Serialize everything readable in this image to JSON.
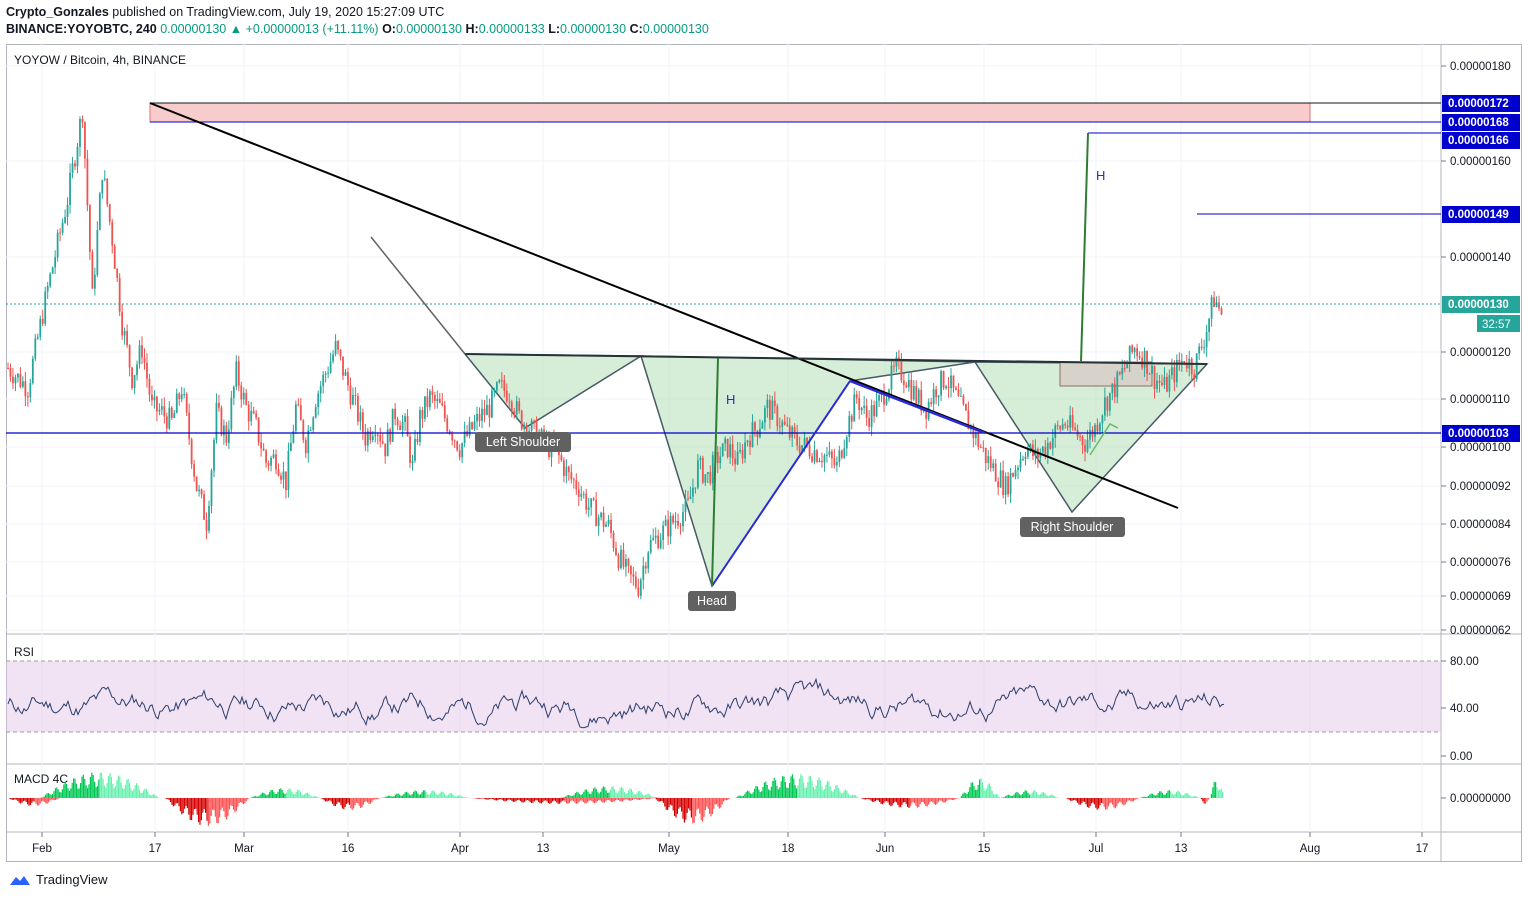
{
  "header": {
    "author": "Crypto_Gonzales",
    "published": "published on TradingView.com, July 19, 2020 15:27:09 UTC",
    "symbol": "BINANCE:YOYOBTC, 240",
    "last": "0.00000130",
    "change": "▲ +0.00000013 (+11.11%)",
    "o_label": "O:",
    "o": "0.00000130",
    "h_label": "H:",
    "h": "0.00000133",
    "l_label": "L:",
    "l": "0.00000130",
    "c_label": "C:",
    "c": "0.00000130"
  },
  "brand": {
    "name": "TradingView",
    "icon": "tradingview-logo-icon"
  },
  "colors": {
    "up": "#26a69a",
    "down": "#ef5350",
    "zone": "#a5d6a7",
    "rsi_band": "#e1bee7",
    "macd_up": "#00e676",
    "macd_down": "#ff1744",
    "label_bg": "#2962ff",
    "line_blue": "#0000cc"
  },
  "chart_data": [
    {
      "type": "candlestick",
      "title": "YOYOW / Bitcoin, 4h, BINANCE",
      "x_ticks": [
        "Feb",
        "17",
        "Mar",
        "16",
        "Apr",
        "13",
        "May",
        "18",
        "Jun",
        "15",
        "Jul",
        "13",
        "Aug",
        "17"
      ],
      "y_ticks": [
        "0.00000180",
        "0.00000160",
        "0.00000140",
        "0.00000120",
        "0.00000110",
        "0.00000100",
        "0.00000092",
        "0.00000084",
        "0.00000076",
        "0.00000069",
        "0.00000062"
      ],
      "price_labels": [
        "0.00000172",
        "0.00000168",
        "0.00000166",
        "0.00000149",
        "0.00000130",
        "0.00000103"
      ],
      "countdown": "32:57",
      "pattern_labels": [
        "Left Shoulder",
        "Head",
        "Right Shoulder"
      ],
      "harmonic_labels": [
        "H",
        "H"
      ],
      "path_points": [
        [
          0,
          116
        ],
        [
          8,
          112
        ],
        [
          16,
          132
        ],
        [
          24,
          150
        ],
        [
          30,
          168
        ],
        [
          34,
          130
        ],
        [
          38,
          156
        ],
        [
          42,
          142
        ],
        [
          46,
          125
        ],
        [
          50,
          114
        ],
        [
          54,
          120
        ],
        [
          58,
          108
        ],
        [
          62,
          107
        ],
        [
          66,
          105
        ],
        [
          70,
          112
        ],
        [
          76,
          92
        ],
        [
          80,
          85
        ],
        [
          84,
          107
        ],
        [
          88,
          102
        ],
        [
          92,
          115
        ],
        [
          96,
          108
        ],
        [
          100,
          104
        ],
        [
          104,
          97
        ],
        [
          108,
          98
        ],
        [
          112,
          93
        ],
        [
          116,
          108
        ],
        [
          120,
          101
        ],
        [
          124,
          110
        ],
        [
          128,
          115
        ],
        [
          132,
          120
        ],
        [
          136,
          114
        ],
        [
          140,
          108
        ],
        [
          144,
          102
        ],
        [
          148,
          105
        ],
        [
          152,
          100
        ],
        [
          156,
          107
        ],
        [
          160,
          104
        ],
        [
          163,
          96
        ],
        [
          166,
          106
        ],
        [
          170,
          110
        ],
        [
          174,
          108
        ],
        [
          178,
          104
        ],
        [
          182,
          100
        ],
        [
          186,
          103
        ],
        [
          190,
          106
        ],
        [
          194,
          108
        ],
        [
          198,
          112
        ],
        [
          202,
          111
        ],
        [
          206,
          106
        ],
        [
          210,
          104
        ],
        [
          214,
          102
        ],
        [
          218,
          100
        ],
        [
          222,
          98
        ],
        [
          226,
          94
        ],
        [
          230,
          92
        ],
        [
          234,
          88
        ],
        [
          238,
          86
        ],
        [
          242,
          84
        ],
        [
          246,
          78
        ],
        [
          250,
          74
        ],
        [
          254,
          72
        ],
        [
          258,
          80
        ],
        [
          262,
          82
        ],
        [
          266,
          84
        ],
        [
          270,
          86
        ],
        [
          274,
          88
        ],
        [
          278,
          96
        ],
        [
          282,
          94
        ],
        [
          286,
          98
        ],
        [
          290,
          100
        ],
        [
          294,
          97
        ],
        [
          298,
          102
        ],
        [
          302,
          104
        ],
        [
          306,
          108
        ],
        [
          310,
          106
        ],
        [
          314,
          103
        ],
        [
          318,
          101
        ],
        [
          322,
          100
        ],
        [
          326,
          99
        ],
        [
          330,
          98
        ],
        [
          334,
          96
        ],
        [
          338,
          104
        ],
        [
          342,
          110
        ],
        [
          346,
          106
        ],
        [
          350,
          108
        ],
        [
          354,
          112
        ],
        [
          358,
          116
        ],
        [
          362,
          114
        ],
        [
          366,
          110
        ],
        [
          370,
          108
        ],
        [
          374,
          112
        ],
        [
          378,
          114
        ],
        [
          382,
          110
        ],
        [
          386,
          106
        ],
        [
          390,
          102
        ],
        [
          394,
          98
        ],
        [
          398,
          95
        ],
        [
          402,
          92
        ],
        [
          406,
          96
        ],
        [
          410,
          100
        ],
        [
          414,
          98
        ],
        [
          418,
          100
        ],
        [
          422,
          103
        ],
        [
          426,
          105
        ],
        [
          430,
          103
        ],
        [
          434,
          101
        ],
        [
          438,
          104
        ],
        [
          442,
          109
        ],
        [
          446,
          112
        ],
        [
          450,
          116
        ],
        [
          454,
          120
        ],
        [
          458,
          118
        ],
        [
          462,
          114
        ],
        [
          466,
          112
        ],
        [
          470,
          115
        ],
        [
          474,
          118
        ],
        [
          478,
          116
        ],
        [
          482,
          122
        ],
        [
          486,
          130
        ],
        [
          490,
          126
        ]
      ]
    },
    {
      "type": "line",
      "title": "RSI",
      "y_ticks": [
        "80.00",
        "40.00",
        "0.00"
      ],
      "band": [
        20,
        80
      ],
      "y_range": [
        0,
        100
      ]
    },
    {
      "type": "bar",
      "title": "MACD 4C",
      "y_ticks": [
        "0.00000000"
      ]
    }
  ]
}
